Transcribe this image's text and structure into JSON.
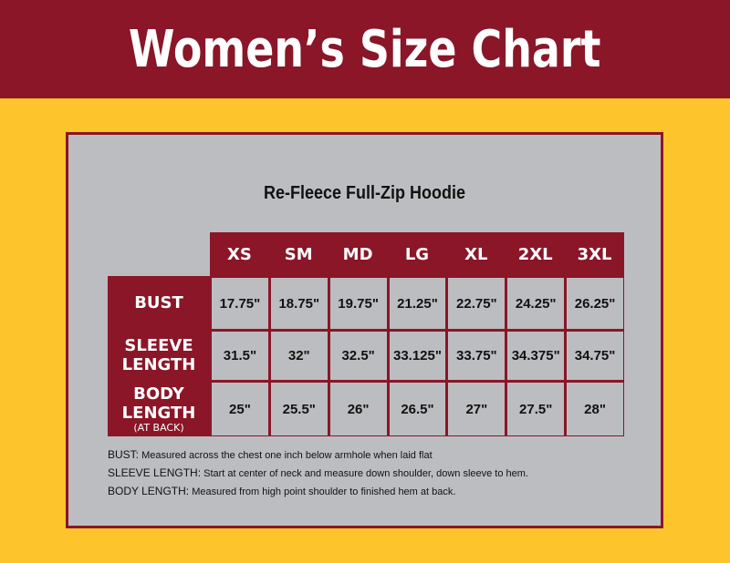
{
  "header": {
    "title": "Women’s Size Chart"
  },
  "product": {
    "title": "Re-Fleece Full-Zip Hoodie"
  },
  "table": {
    "sizes": [
      "XS",
      "SM",
      "MD",
      "LG",
      "XL",
      "2XL",
      "3XL"
    ],
    "rows": [
      {
        "label": "BUST",
        "sub": "",
        "values": [
          "17.75\"",
          "18.75\"",
          "19.75\"",
          "21.25\"",
          "22.75\"",
          "24.25\"",
          "26.25\""
        ]
      },
      {
        "label": "SLEEVE LENGTH",
        "sub": "",
        "values": [
          "31.5\"",
          "32\"",
          "32.5\"",
          "33.125\"",
          "33.75\"",
          "34.375\"",
          "34.75\""
        ]
      },
      {
        "label": "BODY LENGTH",
        "sub": "(AT BACK)",
        "values": [
          "25\"",
          "25.5\"",
          "26\"",
          "26.5\"",
          "27\"",
          "27.5\"",
          "28\""
        ]
      }
    ]
  },
  "notes": [
    {
      "term": "BUST:",
      "text": " Measured across the chest one inch below armhole when laid flat"
    },
    {
      "term": "SLEEVE LENGTH:",
      "text": " Start at center of neck and measure down shoulder, down sleeve to hem."
    },
    {
      "term": "BODY LENGTH:",
      "text": " Measured from high point shoulder to finished hem at back."
    }
  ],
  "colors": {
    "maroon": "#8a1628",
    "yellow": "#fdc52b",
    "gray": "#bcbdc0"
  }
}
